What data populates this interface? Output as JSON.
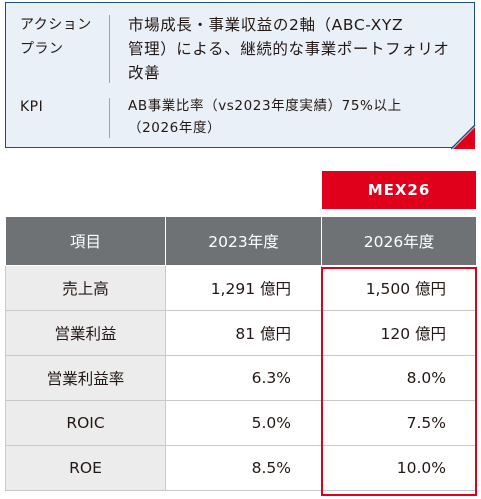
{
  "action_plan": {
    "label_line1": "アクション",
    "label_line2": "プラン",
    "value_line1": "市場成長・事業収益の2軸（ABC-XYZ",
    "value_line2": "管理）による、継続的な事業ポートフォリオ",
    "value_line3": "改善"
  },
  "kpi": {
    "label": "KPI",
    "value_line1": "AB事業比率（vs2023年度実績）75%以上",
    "value_line2": "（2026年度）"
  },
  "badge": {
    "label": "MEX26"
  },
  "table": {
    "headers": [
      "項目",
      "2023年度",
      "2026年度"
    ],
    "rows": [
      {
        "item": "売上高",
        "fy2023": "1,291 億円",
        "fy2026": "1,500 億円"
      },
      {
        "item": "営業利益",
        "fy2023": "81 億円",
        "fy2026": "120 億円"
      },
      {
        "item": "営業利益率",
        "fy2023": "6.3%",
        "fy2026": "8.0%"
      },
      {
        "item": "ROIC",
        "fy2023": "5.0%",
        "fy2026": "7.5%"
      },
      {
        "item": "ROE",
        "fy2023": "8.5%",
        "fy2026": "10.0%"
      }
    ]
  },
  "colors": {
    "accent_red": "#e0001b",
    "box_border": "#1f4e79",
    "box_background": "#eaf0f7",
    "header_gray": "#6e7275"
  }
}
